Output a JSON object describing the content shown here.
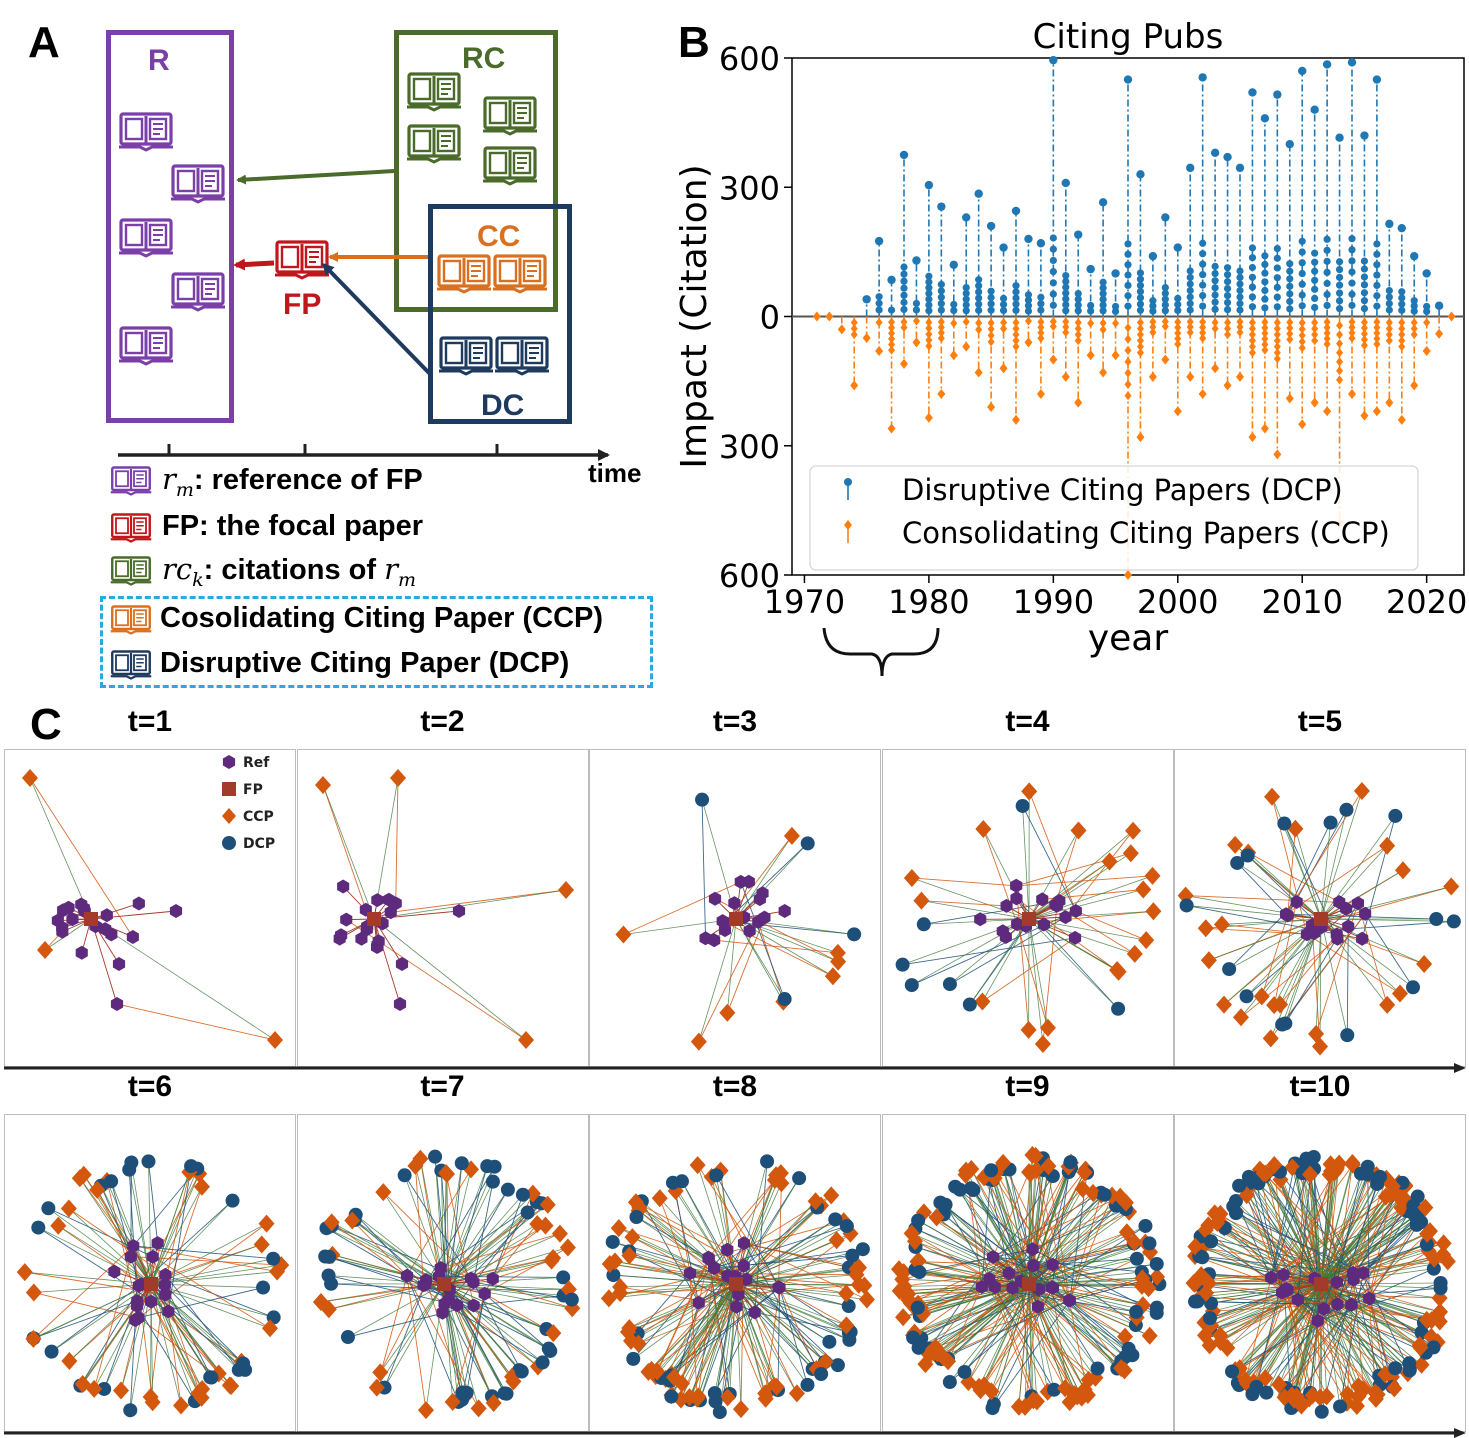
{
  "colors": {
    "purple": "#7b3fa8",
    "green": "#4a6b2a",
    "red": "#c0171c",
    "orange": "#d9701f",
    "navy": "#1f3a5f",
    "chart_blue": "#1f77b4",
    "chart_orange": "#ff7f0e",
    "net_purple": "#5e2a7e",
    "net_brown": "#a23b2a",
    "net_orange": "#d4570e",
    "net_blue": "#1e4f78",
    "legend_border": "#29a9e0"
  },
  "panel_a": {
    "letter": "A",
    "box_r_label": "R",
    "box_rc_label": "RC",
    "box_cc_label": "CC",
    "box_dc_label": "DC",
    "fp_label": "FP",
    "axis_label": "time",
    "icon": "book-icon",
    "legend": [
      {
        "var": "r",
        "sub": "m",
        "text": ": reference of FP",
        "color": "purple"
      },
      {
        "var": "",
        "sub": "",
        "text": "FP: the focal paper",
        "color": "red"
      },
      {
        "var": "rc",
        "sub": "k",
        "text": ": citations of ",
        "tail_var": "r",
        "tail_sub": "m",
        "color": "green"
      },
      {
        "var": "",
        "sub": "",
        "text": "Cosolidating Citing Paper (CCP)",
        "color": "orange"
      },
      {
        "var": "",
        "sub": "",
        "text": "Disruptive Citing Paper (DCP)",
        "color": "navy"
      }
    ]
  },
  "panel_b": {
    "letter": "B",
    "chart_data": {
      "type": "scatter",
      "title": "Citing Pubs",
      "xlabel": "year",
      "ylabel": "Impact (Citation)",
      "xlim": [
        1969,
        2023
      ],
      "ylim": [
        -600,
        600
      ],
      "xticks": [
        "1970",
        "1980",
        "1990",
        "2000",
        "2010",
        "2020"
      ],
      "yticks": [
        "600",
        "300",
        "0",
        "300",
        "600"
      ],
      "legend_position": "lower-center",
      "series": [
        {
          "name": "Disruptive Citing Papers (DCP)",
          "color": "#1f77b4",
          "marker": "circle",
          "x": [
            1975,
            1976,
            1977,
            1978,
            1979,
            1980,
            1981,
            1982,
            1983,
            1984,
            1985,
            1986,
            1987,
            1988,
            1989,
            1990,
            1991,
            1992,
            1993,
            1994,
            1995,
            1996,
            1997,
            1998,
            1999,
            2000,
            2001,
            2002,
            2003,
            2004,
            2005,
            2006,
            2007,
            2008,
            2009,
            2010,
            2011,
            2012,
            2013,
            2014,
            2015,
            2016,
            2017,
            2018,
            2019,
            2020,
            2021
          ],
          "y": [
            40,
            175,
            85,
            375,
            130,
            305,
            255,
            120,
            230,
            285,
            210,
            160,
            245,
            180,
            170,
            595,
            310,
            190,
            110,
            265,
            100,
            550,
            330,
            140,
            230,
            160,
            345,
            555,
            380,
            370,
            345,
            520,
            460,
            515,
            400,
            570,
            480,
            585,
            415,
            590,
            420,
            550,
            215,
            205,
            140,
            100,
            25
          ]
        },
        {
          "name": "Consolidating Citing Papers (CCP)",
          "color": "#ff7f0e",
          "marker": "diamond",
          "x": [
            1971,
            1972,
            1973,
            1974,
            1975,
            1976,
            1977,
            1978,
            1979,
            1980,
            1981,
            1982,
            1983,
            1984,
            1985,
            1986,
            1987,
            1988,
            1989,
            1990,
            1991,
            1992,
            1993,
            1994,
            1995,
            1996,
            1997,
            1998,
            1999,
            2000,
            2001,
            2002,
            2003,
            2004,
            2005,
            2006,
            2007,
            2008,
            2009,
            2010,
            2011,
            2012,
            2013,
            2014,
            2015,
            2016,
            2017,
            2018,
            2019,
            2020,
            2021,
            2022
          ],
          "y": [
            0,
            0,
            -30,
            -160,
            -50,
            -80,
            -260,
            -110,
            -60,
            -235,
            -180,
            -90,
            -70,
            -130,
            -210,
            -120,
            -240,
            -60,
            -180,
            -100,
            -140,
            -200,
            -90,
            -130,
            -90,
            -600,
            -280,
            -140,
            -100,
            -220,
            -140,
            -180,
            -120,
            -160,
            -140,
            -280,
            -260,
            -320,
            -190,
            -250,
            -200,
            -220,
            -480,
            -180,
            -230,
            -220,
            -200,
            -240,
            -160,
            -80,
            -40,
            0
          ]
        }
      ]
    }
  },
  "panel_c": {
    "letter": "C",
    "timesteps": [
      "t=1",
      "t=2",
      "t=3",
      "t=4",
      "t=5",
      "t=6",
      "t=7",
      "t=8",
      "t=9",
      "t=10"
    ],
    "citing_counts": [
      3,
      4,
      12,
      26,
      38,
      55,
      70,
      100,
      150,
      190
    ],
    "legend": [
      {
        "label": "Ref",
        "marker": "hexagon",
        "color": "#5e2a7e"
      },
      {
        "label": "FP",
        "marker": "square",
        "color": "#a23b2a"
      },
      {
        "label": "CCP",
        "marker": "diamond",
        "color": "#d4570e"
      },
      {
        "label": "DCP",
        "marker": "circle",
        "color": "#1e4f78"
      }
    ]
  }
}
